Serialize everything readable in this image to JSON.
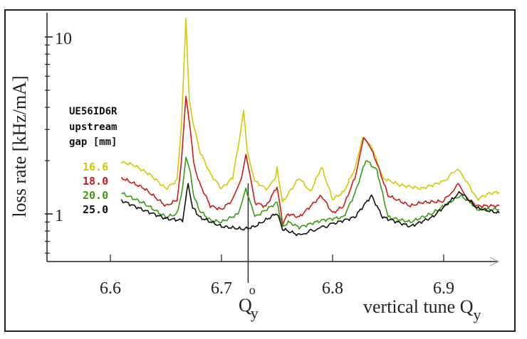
{
  "chart_data": {
    "type": "line",
    "title": "",
    "xlabel": "vertical tune Q",
    "xlabel_sub": "y",
    "ylabel": "loss rate [kHz/mA]",
    "yscale": "log",
    "xlim": [
      6.543,
      6.95
    ],
    "ylim": [
      0.54,
      13.4
    ],
    "x_ticks": [
      6.6,
      6.7,
      6.8,
      6.9
    ],
    "x_tick_labels": [
      "6.6",
      "6.7",
      "6.8",
      "6.9"
    ],
    "y_ticks": [
      1,
      10
    ],
    "y_tick_labels": [
      "1",
      "10"
    ],
    "grid": false,
    "marker_line": {
      "x": 6.724,
      "label": "Q",
      "sup": "o",
      "sub": "y"
    },
    "legend": {
      "title_lines": [
        "UE56ID6R",
        "upstream",
        "gap [mm]"
      ],
      "placement": "left"
    },
    "series": [
      {
        "name": "16.6",
        "color": "#d4c800",
        "x": [
          6.61,
          6.62,
          6.635,
          6.65,
          6.66,
          6.664,
          6.668,
          6.671,
          6.675,
          6.68,
          6.69,
          6.7,
          6.71,
          6.716,
          6.72,
          6.723,
          6.73,
          6.74,
          6.748,
          6.75,
          6.755,
          6.76,
          6.77,
          6.78,
          6.79,
          6.795,
          6.8,
          6.81,
          6.82,
          6.827,
          6.835,
          6.845,
          6.86,
          6.88,
          6.9,
          6.913,
          6.92,
          6.93,
          6.94,
          6.95
        ],
        "y": [
          1.96,
          1.9,
          1.68,
          1.39,
          1.55,
          3.2,
          12.8,
          4.4,
          3.2,
          2.3,
          1.68,
          1.39,
          1.6,
          2.6,
          3.79,
          2.3,
          1.53,
          1.39,
          1.55,
          1.81,
          1.16,
          1.3,
          1.6,
          1.33,
          1.84,
          1.5,
          1.21,
          1.33,
          1.8,
          2.67,
          2.43,
          1.6,
          1.46,
          1.39,
          1.53,
          1.81,
          1.55,
          1.21,
          1.3,
          1.33
        ]
      },
      {
        "name": "18.0",
        "color": "#cc1a1a",
        "x": [
          6.61,
          6.63,
          6.65,
          6.66,
          6.664,
          6.668,
          6.672,
          6.675,
          6.68,
          6.69,
          6.7,
          6.71,
          6.718,
          6.722,
          6.726,
          6.73,
          6.74,
          6.75,
          6.755,
          6.76,
          6.77,
          6.79,
          6.8,
          6.81,
          6.82,
          6.828,
          6.835,
          6.84,
          6.85,
          6.87,
          6.88,
          6.9,
          6.913,
          6.92,
          6.93,
          6.95
        ],
        "y": [
          1.6,
          1.4,
          1.11,
          1.2,
          2.0,
          4.52,
          3.0,
          1.93,
          1.5,
          1.11,
          1.06,
          1.2,
          1.6,
          2.18,
          1.6,
          1.16,
          1.1,
          1.43,
          0.88,
          1.0,
          0.96,
          1.27,
          1.01,
          1.11,
          1.6,
          2.67,
          2.3,
          1.93,
          1.27,
          1.11,
          1.16,
          1.18,
          1.46,
          1.25,
          1.11,
          1.11
        ]
      },
      {
        "name": "20.0",
        "color": "#3a9a10",
        "x": [
          6.61,
          6.63,
          6.65,
          6.66,
          6.665,
          6.668,
          6.672,
          6.675,
          6.68,
          6.69,
          6.7,
          6.715,
          6.722,
          6.727,
          6.73,
          6.75,
          6.755,
          6.76,
          6.77,
          6.79,
          6.81,
          6.82,
          6.83,
          6.84,
          6.85,
          6.87,
          6.89,
          6.915,
          6.925,
          6.93,
          6.95
        ],
        "y": [
          1.31,
          1.15,
          0.96,
          1.0,
          1.4,
          2.11,
          1.7,
          1.27,
          1.05,
          0.92,
          0.9,
          1.0,
          1.39,
          1.1,
          0.96,
          1.16,
          0.84,
          0.9,
          0.84,
          0.92,
          0.96,
          1.3,
          2.02,
          1.76,
          0.96,
          0.9,
          1.01,
          1.27,
          1.15,
          1.06,
          1.06
        ]
      },
      {
        "name": "25.0",
        "color": "#111111",
        "x": [
          6.61,
          6.63,
          6.65,
          6.665,
          6.67,
          6.674,
          6.68,
          6.7,
          6.72,
          6.73,
          6.75,
          6.755,
          6.76,
          6.77,
          6.8,
          6.82,
          6.835,
          6.845,
          6.87,
          6.89,
          6.915,
          6.93,
          6.95
        ],
        "y": [
          1.19,
          1.05,
          0.94,
          0.92,
          1.49,
          1.1,
          0.96,
          0.85,
          0.82,
          0.85,
          1.01,
          0.82,
          0.8,
          0.76,
          0.88,
          0.96,
          1.27,
          0.96,
          0.85,
          0.96,
          1.33,
          1.08,
          1.01
        ]
      }
    ]
  }
}
